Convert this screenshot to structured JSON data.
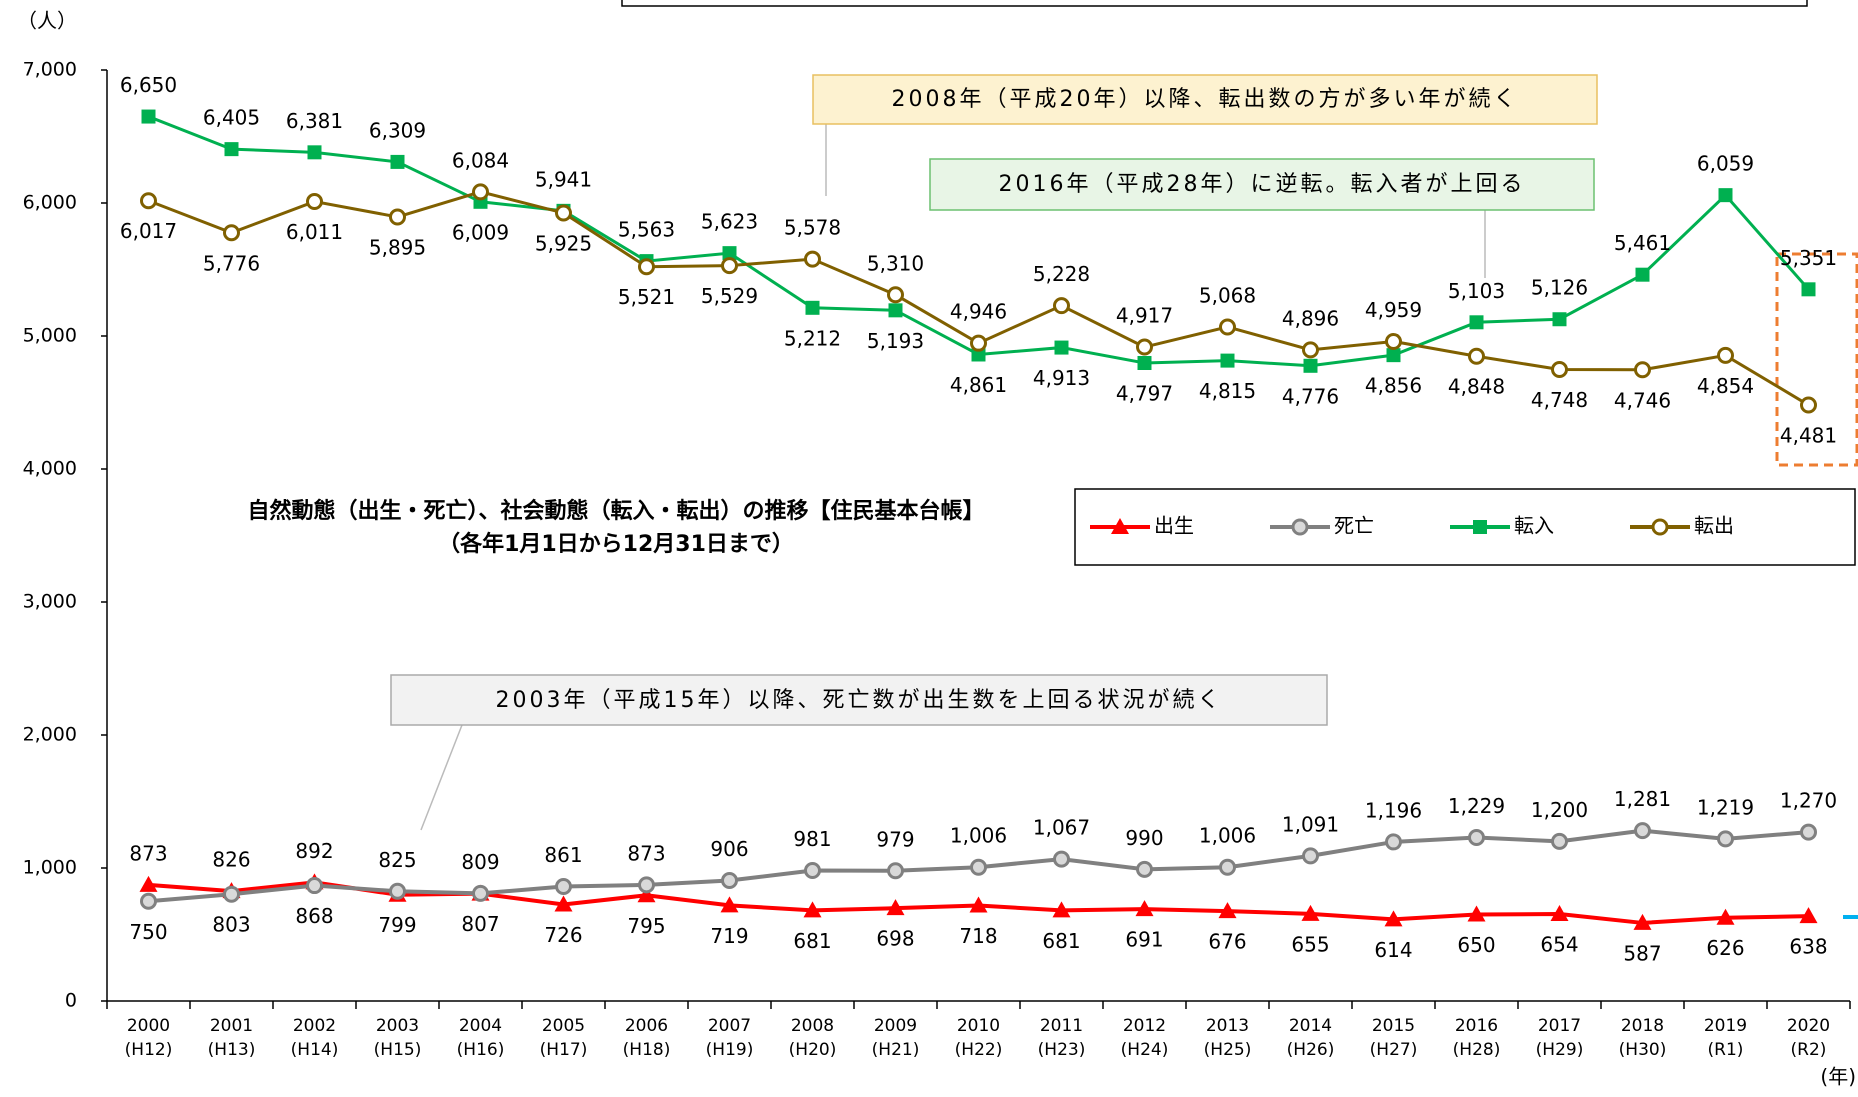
{
  "chart_data": {
    "type": "line",
    "title": "自然動態（出生・死亡）、社会動態（転入・転出）の推移【住民基本台帳】",
    "subtitle": "（各年1月1日から12月31日まで）",
    "y_label": "（人）",
    "x_label": "(年)",
    "categories": [
      "2000",
      "2001",
      "2002",
      "2003",
      "2004",
      "2005",
      "2006",
      "2007",
      "2008",
      "2009",
      "2010",
      "2011",
      "2012",
      "2013",
      "2014",
      "2015",
      "2016",
      "2017",
      "2018",
      "2019",
      "2020"
    ],
    "category_sublabels": [
      "(H12)",
      "(H13)",
      "(H14)",
      "(H15)",
      "(H16)",
      "(H17)",
      "(H18)",
      "(H19)",
      "(H20)",
      "(H21)",
      "(H22)",
      "(H23)",
      "(H24)",
      "(H25)",
      "(H26)",
      "(H27)",
      "(H28)",
      "(H29)",
      "(H30)",
      "(R1)",
      "(R2)"
    ],
    "ylim": [
      0,
      7000
    ],
    "yticks": [
      0,
      {
        "value": 1000,
        "label": "1,000"
      },
      {
        "value": 2000,
        "label": "2,000"
      },
      {
        "value": 3000,
        "label": "3,000"
      },
      {
        "value": 4000,
        "label": "4,000"
      },
      {
        "value": 5000,
        "label": "5,000"
      },
      {
        "value": 6000,
        "label": "6,000"
      },
      {
        "value": 7000,
        "label": "7,000"
      }
    ],
    "series": [
      {
        "name": "出生",
        "color": "#ff0000",
        "marker": "triangle",
        "values": [
          873,
          826,
          892,
          799,
          807,
          726,
          795,
          719,
          681,
          698,
          718,
          681,
          691,
          676,
          655,
          614,
          650,
          654,
          587,
          626,
          638
        ]
      },
      {
        "name": "死亡",
        "color": "#808080",
        "marker": "circle",
        "values": [
          750,
          803,
          868,
          825,
          809,
          861,
          873,
          906,
          981,
          979,
          1006,
          1067,
          990,
          1006,
          1091,
          1196,
          1229,
          1200,
          1281,
          1219,
          1270
        ],
        "value_labels": [
          "750",
          "803",
          "868",
          "825",
          "809",
          "861",
          "873",
          "906",
          "981",
          "979",
          "1,006",
          "1,067",
          "990",
          "1,006",
          "1,091",
          "1,196",
          "1,229",
          "1,200",
          "1,281",
          "1,219",
          "1,270"
        ]
      },
      {
        "name": "転入",
        "color": "#00b050",
        "marker": "square",
        "values": [
          6650,
          6405,
          6381,
          6309,
          6009,
          5941,
          5563,
          5623,
          5212,
          5193,
          4861,
          4913,
          4797,
          4815,
          4776,
          4856,
          5103,
          5126,
          5461,
          6059,
          5351
        ],
        "value_labels": [
          "6,650",
          "6,405",
          "6,381",
          "6,309",
          "6,009",
          "5,941",
          "5,563",
          "5,623",
          "5,212",
          "5,193",
          "4,861",
          "4,913",
          "4,797",
          "4,815",
          "4,776",
          "4,856",
          "5,103",
          "5,126",
          "5,461",
          "6,059",
          "5,351"
        ]
      },
      {
        "name": "転出",
        "color": "#806000",
        "marker": "open-circle",
        "values": [
          6017,
          5776,
          6011,
          5895,
          6084,
          5925,
          5521,
          5529,
          5578,
          5310,
          4946,
          5228,
          4917,
          5068,
          4896,
          4959,
          4848,
          4748,
          4746,
          4854,
          4481
        ],
        "value_labels": [
          "6,017",
          "5,776",
          "6,011",
          "5,895",
          "6,084",
          "5,925",
          "5,521",
          "5,529",
          "5,578",
          "5,310",
          "4,946",
          "5,228",
          "4,917",
          "5,068",
          "4,896",
          "4,959",
          "4,848",
          "4,748",
          "4,746",
          "4,854",
          "4,481"
        ]
      }
    ],
    "annotations": [
      "2008年（平成20年）以降、転出数の方が多い年が続く",
      "2016年（平成28年）に逆転。転入者が上回る",
      "2003年（平成15年）以降、死亡数が出生数を上回る状況が続く"
    ]
  }
}
